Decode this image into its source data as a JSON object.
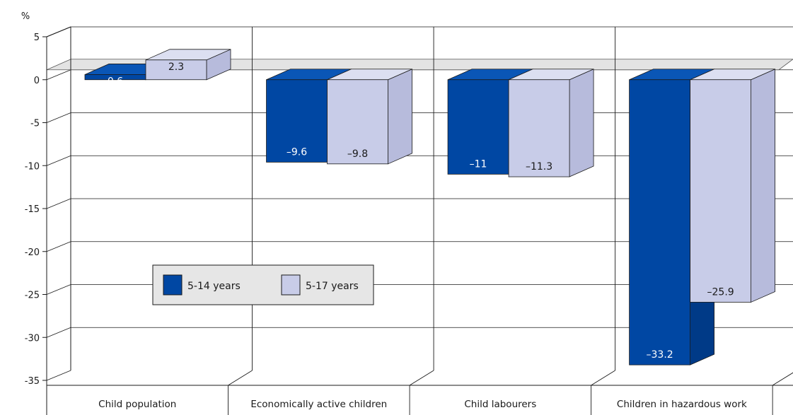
{
  "chart_data": {
    "type": "bar",
    "ylabel": "%",
    "ylim": [
      -35,
      5
    ],
    "yticks": [
      "5",
      "0",
      "-5",
      "-10",
      "-15",
      "-20",
      "-25",
      "-30",
      "-35"
    ],
    "categories": [
      "Child population",
      "Economically active children",
      "Child labourers",
      "Children in hazardous work"
    ],
    "series": [
      {
        "name": "5-14 years",
        "values": [
          0.6,
          -9.6,
          -11,
          -33.2
        ],
        "labels": [
          "0.6",
          "–9.6",
          "–11",
          "–33.2"
        ],
        "color": "#0047a3",
        "side_color": "#003a87",
        "top_color": "#0a56b6",
        "label_color": "#ffffff"
      },
      {
        "name": "5-17 years",
        "values": [
          2.3,
          -9.8,
          -11.3,
          -25.9
        ],
        "labels": [
          "2.3",
          "–9.8",
          "–11.3",
          "–25.9"
        ],
        "color": "#c8cce8",
        "side_color": "#b7bbdc",
        "top_color": "#dcdff1",
        "label_color": "#1a1a1a"
      }
    ],
    "grid": true,
    "legend_position": "center-left"
  },
  "colors": {
    "zero_plane": "#d9d9d9",
    "background": "#ffffff",
    "axis": "#1a1a1a",
    "legend_bg": "#e6e6e6"
  }
}
